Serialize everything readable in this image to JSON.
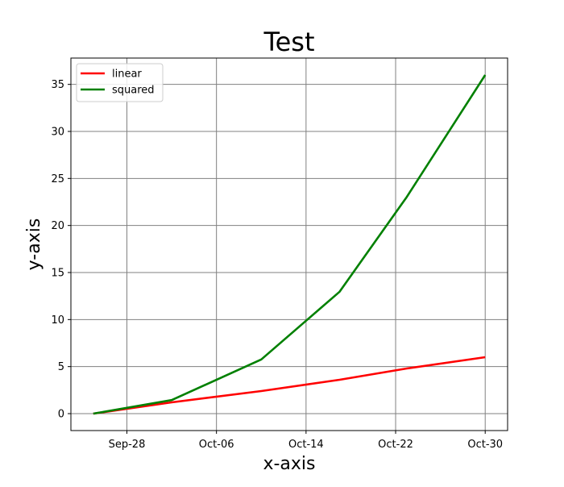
{
  "chart_data": {
    "type": "line",
    "title": "Test",
    "xlabel": "x-axis",
    "ylabel": "y-axis",
    "x": [
      "2017-09-25",
      "2017-10-02",
      "2017-10-10",
      "2017-10-17",
      "2017-10-23",
      "2017-10-30"
    ],
    "x_tick_labels": [
      "Sep-28",
      "Oct-06",
      "Oct-14",
      "Oct-22",
      "Oct-30"
    ],
    "x_tick_dates": [
      "2017-09-28",
      "2017-10-06",
      "2017-10-14",
      "2017-10-22",
      "2017-10-30"
    ],
    "xlim": [
      "2017-09-23",
      "2017-11-01"
    ],
    "y_ticks": [
      0,
      5,
      10,
      15,
      20,
      25,
      30,
      35
    ],
    "ylim": [
      -1.8,
      37.8
    ],
    "grid": true,
    "legend_position": "top-left",
    "series": [
      {
        "name": "linear",
        "color": "#ff0000",
        "values": [
          0,
          1.2,
          2.4,
          3.6,
          4.8,
          6
        ]
      },
      {
        "name": "squared",
        "color": "#008000",
        "values": [
          0,
          1.44,
          5.76,
          12.96,
          23.04,
          36
        ]
      }
    ]
  }
}
